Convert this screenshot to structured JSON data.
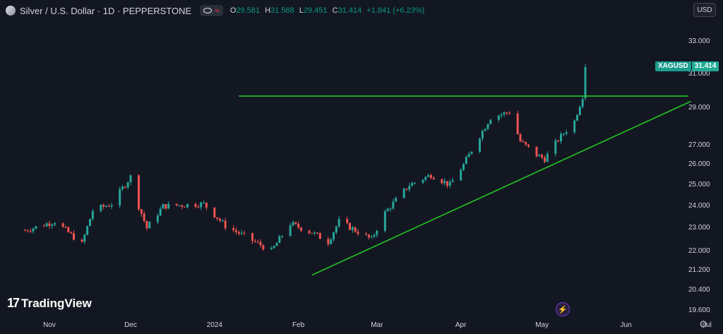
{
  "legend": {
    "title": "Silver / U.S. Dollar · 1D · PEPPERSTONE",
    "o_key": "O",
    "o_val": "29.581",
    "h_key": "H",
    "h_val": "31.588",
    "l_key": "L",
    "l_val": "29.451",
    "c_key": "C",
    "c_val": "31.414",
    "change": "+1.841 (+6.23%)",
    "icon_names": [
      "silver-symbol-icon",
      "eye-icon",
      "wave-icon"
    ]
  },
  "currency_button": "USD",
  "price_tag": {
    "name": "XAGUSD",
    "value": "31.414"
  },
  "brand": {
    "logo_text": "TradingView",
    "logo_mark": "17"
  },
  "colors": {
    "up": "#26a69a",
    "down": "#ef5350",
    "trendline": "#22c524",
    "background": "#131722",
    "text": "#d1d4dc"
  },
  "chart_data": {
    "type": "candlestick",
    "symbol": "XAGUSD",
    "interval": "1D",
    "y_scale": "log",
    "y_ticks": [
      "33.000",
      "31.000",
      "29.000",
      "27.000",
      "26.000",
      "25.000",
      "24.000",
      "23.000",
      "22.000",
      "21.200",
      "20.400",
      "19.600"
    ],
    "x_ticks": [
      "Nov",
      "Dec",
      "2024",
      "Feb",
      "Mar",
      "Apr",
      "May",
      "Jun",
      "Jul"
    ],
    "close_path": [
      [
        "2023-10-23",
        22.9
      ],
      [
        "2023-11-03",
        23.3
      ],
      [
        "2023-11-13",
        22.3
      ],
      [
        "2023-11-17",
        23.8
      ],
      [
        "2023-11-24",
        24.1
      ],
      [
        "2023-12-01",
        25.4
      ],
      [
        "2023-12-04",
        24.0
      ],
      [
        "2023-12-07",
        23.0
      ],
      [
        "2023-12-13",
        24.0
      ],
      [
        "2023-12-28",
        24.1
      ],
      [
        "2024-01-05",
        23.1
      ],
      [
        "2024-01-22",
        22.0
      ],
      [
        "2024-01-29",
        23.2
      ],
      [
        "2024-02-06",
        22.8
      ],
      [
        "2024-02-12",
        22.4
      ],
      [
        "2024-02-16",
        23.3
      ],
      [
        "2024-02-28",
        22.5
      ],
      [
        "2024-03-04",
        23.7
      ],
      [
        "2024-03-13",
        25.0
      ],
      [
        "2024-03-21",
        25.5
      ],
      [
        "2024-03-28",
        25.0
      ],
      [
        "2024-04-02",
        26.0
      ],
      [
        "2024-04-12",
        28.5
      ],
      [
        "2024-04-19",
        28.8
      ],
      [
        "2024-04-23",
        27.2
      ],
      [
        "2024-04-29",
        26.5
      ],
      [
        "2024-05-02",
        26.3
      ],
      [
        "2024-05-07",
        27.3
      ],
      [
        "2024-05-13",
        28.3
      ],
      [
        "2024-05-16",
        29.7
      ],
      [
        "2024-05-17",
        31.414
      ]
    ],
    "last_candle": {
      "open": 29.581,
      "high": 31.588,
      "low": 29.451,
      "close": 31.414
    },
    "drawings": [
      {
        "type": "horizontal-resistance",
        "from": "2024-01-10",
        "to": "2024-06-24",
        "price": 29.7
      },
      {
        "type": "ascending-support",
        "from": [
          "2024-02-06",
          21.0
        ],
        "to": [
          "2024-06-25",
          29.4
        ]
      }
    ]
  }
}
